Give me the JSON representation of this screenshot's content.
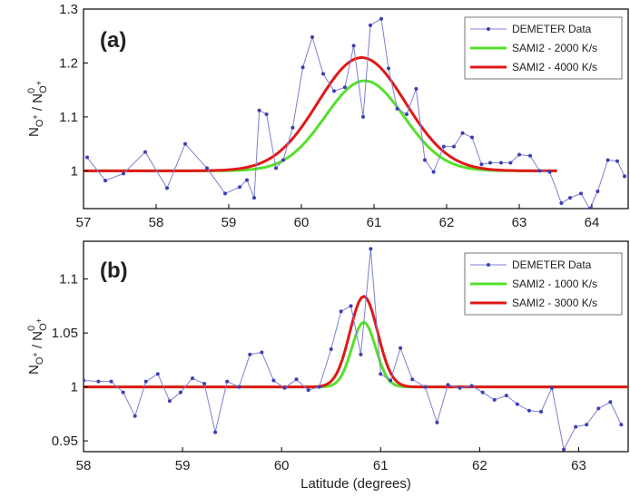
{
  "chart_data": [
    {
      "type": "line",
      "panel_label": "(a)",
      "ylabel": "N_O+ / N⁰_O+",
      "ylabel_parts": {
        "n1": "N",
        "s1": "O",
        "p1": "+",
        "slash": " / ",
        "n2": "N",
        "sup2": "0",
        "s2": "O",
        "p2": "+"
      },
      "xlim": [
        57,
        64.5
      ],
      "ylim": [
        0.93,
        1.3
      ],
      "xticks": [
        57,
        58,
        59,
        60,
        61,
        62,
        63,
        64
      ],
      "yticks": [
        1,
        1.1,
        1.2,
        1.3
      ],
      "ytick_labels": [
        "1",
        "1.1",
        "1.2",
        "1.3"
      ],
      "legend_position": "top-right",
      "series": [
        {
          "name": "DEMETER Data",
          "color": "#7d7fd0",
          "style": "line-markers",
          "x": [
            57.05,
            57.3,
            57.55,
            57.85,
            58.15,
            58.4,
            58.7,
            58.95,
            59.15,
            59.25,
            59.35,
            59.42,
            59.52,
            59.65,
            59.75,
            59.88,
            60.02,
            60.15,
            60.3,
            60.45,
            60.6,
            60.72,
            60.85,
            60.95,
            61.1,
            61.2,
            61.32,
            61.45,
            61.58,
            61.7,
            61.82,
            61.96,
            62.1,
            62.22,
            62.35,
            62.48,
            62.6,
            62.75,
            62.88,
            63.0,
            63.15,
            63.28,
            63.42,
            63.58,
            63.7,
            63.85,
            63.97,
            64.08,
            64.22,
            64.35,
            64.45
          ],
          "y": [
            1.025,
            0.982,
            0.995,
            1.035,
            0.968,
            1.05,
            1.005,
            0.958,
            0.97,
            0.983,
            0.95,
            1.112,
            1.105,
            1.005,
            1.02,
            1.08,
            1.192,
            1.248,
            1.18,
            1.148,
            1.155,
            1.232,
            1.1,
            1.27,
            1.282,
            1.19,
            1.115,
            1.105,
            1.152,
            1.02,
            0.998,
            1.045,
            1.045,
            1.07,
            1.062,
            1.012,
            1.015,
            1.015,
            1.015,
            1.03,
            1.028,
            1.0,
            0.998,
            0.94,
            0.95,
            0.958,
            0.93,
            0.962,
            1.02,
            1.018,
            0.99
          ]
        },
        {
          "name": "SAMI2 - 2000 K/s",
          "color": "#55e02b",
          "style": "line",
          "gaussian": {
            "base": 1.0,
            "amp": 0.167,
            "center": 60.87,
            "sigma": 0.54,
            "xmin": 57,
            "xmax": 63.52
          }
        },
        {
          "name": "SAMI2 - 4000 K/s",
          "color": "#e01818",
          "style": "line",
          "gaussian": {
            "base": 1.0,
            "amp": 0.21,
            "center": 60.83,
            "sigma": 0.6,
            "xmin": 57,
            "xmax": 63.52
          }
        }
      ]
    },
    {
      "type": "line",
      "panel_label": "(b)",
      "ylabel": "N_O+ / N⁰_O+",
      "ylabel_parts": {
        "n1": "N",
        "s1": "O",
        "p1": "+",
        "slash": " / ",
        "n2": "N",
        "sup2": "0",
        "s2": "O",
        "p2": "+"
      },
      "xlabel": "Latitude (degrees)",
      "xlim": [
        58,
        63.5
      ],
      "ylim": [
        0.94,
        1.135
      ],
      "xticks": [
        58,
        59,
        60,
        61,
        62,
        63
      ],
      "yticks": [
        0.95,
        1,
        1.05,
        1.1
      ],
      "ytick_labels": [
        "0.95",
        "1",
        "1.05",
        "1.1"
      ],
      "legend_position": "top-right",
      "series": [
        {
          "name": "DEMETER Data",
          "color": "#7d7fd0",
          "style": "line-markers",
          "x": [
            58.0,
            58.15,
            58.28,
            58.4,
            58.52,
            58.63,
            58.75,
            58.87,
            58.98,
            59.1,
            59.22,
            59.33,
            59.45,
            59.57,
            59.68,
            59.8,
            59.92,
            60.03,
            60.15,
            60.27,
            60.38,
            60.5,
            60.6,
            60.7,
            60.8,
            60.9,
            61.0,
            61.1,
            61.2,
            61.32,
            61.45,
            61.57,
            61.68,
            61.8,
            61.92,
            62.03,
            62.15,
            62.27,
            62.38,
            62.5,
            62.62,
            62.73,
            62.85,
            62.97,
            63.08,
            63.2,
            63.32,
            63.43
          ],
          "y": [
            1.006,
            1.005,
            1.005,
            0.995,
            0.973,
            1.005,
            1.012,
            0.987,
            0.995,
            1.008,
            1.003,
            0.958,
            1.005,
            1.0,
            1.03,
            1.032,
            1.006,
            0.999,
            1.007,
            0.997,
            1.0,
            1.035,
            1.07,
            1.075,
            1.03,
            1.128,
            1.012,
            1.006,
            1.036,
            1.007,
            1.0,
            0.967,
            1.002,
            0.999,
            1.001,
            0.995,
            0.988,
            0.992,
            0.984,
            0.978,
            0.977,
            0.999,
            0.942,
            0.963,
            0.965,
            0.98,
            0.986,
            0.965
          ]
        },
        {
          "name": "SAMI2 - 1000 K/s",
          "color": "#55e02b",
          "style": "line",
          "gaussian": {
            "base": 1.0,
            "amp": 0.06,
            "center": 60.83,
            "sigma": 0.12,
            "xmin": 58,
            "xmax": 63.5
          }
        },
        {
          "name": "SAMI2 - 3000 K/s",
          "color": "#e01818",
          "style": "line",
          "gaussian": {
            "base": 1.0,
            "amp": 0.084,
            "center": 60.83,
            "sigma": 0.14,
            "xmin": 58,
            "xmax": 63.5
          }
        }
      ]
    }
  ]
}
